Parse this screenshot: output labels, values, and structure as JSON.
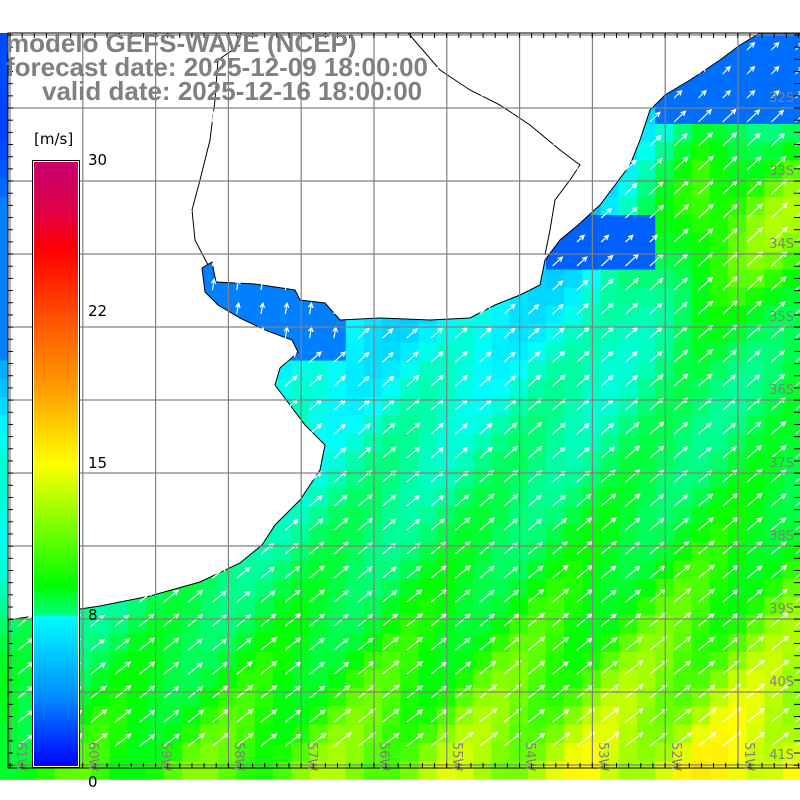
{
  "title": {
    "model": "modelo GEFS-WAVE (NCEP)",
    "forecast": "forecast date: 2025-12-09 18:00:00",
    "valid": "valid date: 2025-12-16 18:00:00"
  },
  "colorbar": {
    "unit": "[m/s]",
    "ticks": [
      "30",
      "22",
      "15",
      "8",
      "0"
    ],
    "range": [
      0,
      30
    ]
  },
  "axes": {
    "lat_labels": [
      "32S",
      "33S",
      "34S",
      "35S",
      "36S",
      "37S",
      "38S",
      "39S",
      "40S",
      "41S"
    ],
    "lon_labels": [
      "61W",
      "60W",
      "59W",
      "58W",
      "57W",
      "56W",
      "55W",
      "54W",
      "53W",
      "52W",
      "51W"
    ]
  },
  "colors": {
    "land": "#ffffff",
    "coast": "#000000",
    "grid": "#808080",
    "arrow": "#ffffff",
    "title": "#808080"
  }
}
